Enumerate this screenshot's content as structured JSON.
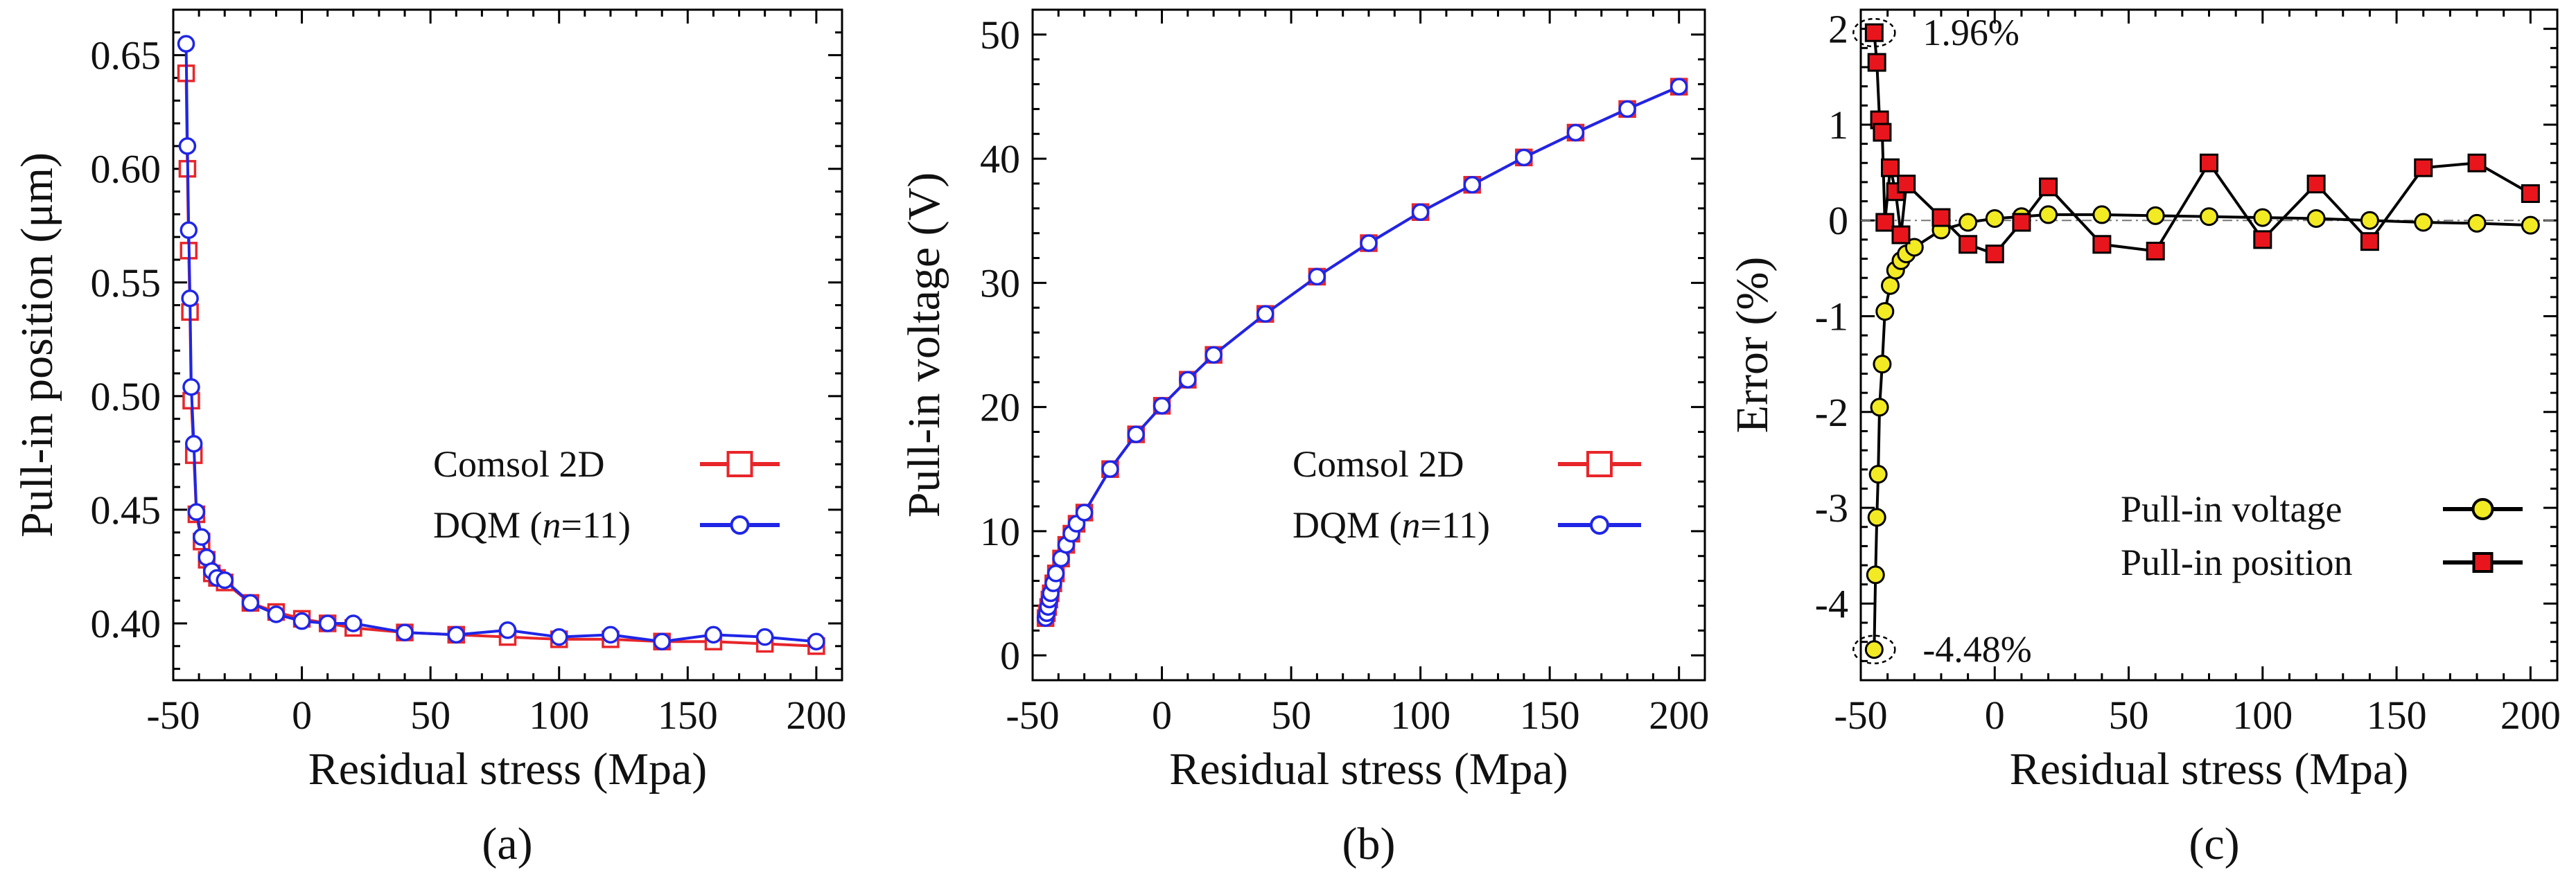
{
  "chart_data": [
    {
      "type": "line",
      "caption": "(a)",
      "xlabel": "Residual stress (Mpa)",
      "ylabel": "Pull-in position (μm)",
      "xlim": [
        -50,
        210
      ],
      "ylim": [
        0.375,
        0.67
      ],
      "xticks": [
        -50,
        0,
        50,
        100,
        150,
        200
      ],
      "xtick_labels": [
        "-50",
        "0",
        "50",
        "100",
        "150",
        "200"
      ],
      "yticks": [
        0.4,
        0.45,
        0.5,
        0.55,
        0.6,
        0.65
      ],
      "ytick_labels": [
        "0.40",
        "0.45",
        "0.50",
        "0.55",
        "0.60",
        "0.65"
      ],
      "legend_position": "center-right",
      "series": [
        {
          "name": "Comsol 2D",
          "color": "#e8262a",
          "marker": "square",
          "x": [
            -45,
            -44.5,
            -44,
            -43.5,
            -43,
            -42,
            -41,
            -39,
            -37,
            -35,
            -33,
            -30,
            -20,
            -10,
            0,
            10,
            20,
            40,
            60,
            80,
            100,
            120,
            140,
            160,
            180,
            200
          ],
          "y": [
            0.642,
            0.6,
            0.564,
            0.537,
            0.498,
            0.474,
            0.448,
            0.436,
            0.428,
            0.422,
            0.42,
            0.418,
            0.409,
            0.405,
            0.402,
            0.4,
            0.398,
            0.396,
            0.395,
            0.394,
            0.393,
            0.393,
            0.392,
            0.392,
            0.391,
            0.39
          ]
        },
        {
          "name": "DQM (n=11)",
          "name_main": "DQM (",
          "name_italic": "n",
          "name_tail": "=11)",
          "color": "#1f26e6",
          "marker": "circle",
          "x": [
            -45,
            -44.5,
            -44,
            -43.5,
            -43,
            -42,
            -41,
            -39,
            -37,
            -35,
            -33,
            -30,
            -20,
            -10,
            0,
            10,
            20,
            40,
            60,
            80,
            100,
            120,
            140,
            160,
            180,
            200
          ],
          "y": [
            0.655,
            0.61,
            0.573,
            0.543,
            0.504,
            0.479,
            0.449,
            0.438,
            0.429,
            0.423,
            0.42,
            0.419,
            0.409,
            0.404,
            0.401,
            0.4,
            0.4,
            0.396,
            0.395,
            0.397,
            0.394,
            0.395,
            0.392,
            0.395,
            0.394,
            0.392
          ]
        }
      ]
    },
    {
      "type": "line",
      "caption": "(b)",
      "xlabel": "Residual stress (Mpa)",
      "ylabel": "Pull-in voltage (V)",
      "xlim": [
        -50,
        210
      ],
      "ylim": [
        -2,
        52
      ],
      "xticks": [
        -50,
        0,
        50,
        100,
        150,
        200
      ],
      "xtick_labels": [
        "-50",
        "0",
        "50",
        "100",
        "150",
        "200"
      ],
      "yticks": [
        0,
        10,
        20,
        30,
        40,
        50
      ],
      "ytick_labels": [
        "0",
        "10",
        "20",
        "30",
        "40",
        "50"
      ],
      "legend_position": "center-right",
      "series": [
        {
          "name": "Comsol 2D",
          "color": "#e8262a",
          "marker": "square",
          "x": [
            -45,
            -44.5,
            -44,
            -43.5,
            -43,
            -42,
            -41,
            -39,
            -37,
            -35,
            -33,
            -30,
            -20,
            -10,
            0,
            10,
            20,
            40,
            60,
            80,
            100,
            120,
            140,
            160,
            180,
            200
          ],
          "y": [
            3.0,
            3.4,
            3.9,
            4.5,
            5.0,
            5.8,
            6.6,
            7.8,
            8.9,
            9.8,
            10.6,
            11.5,
            15.0,
            17.8,
            20.1,
            22.2,
            24.2,
            27.5,
            30.5,
            33.2,
            35.7,
            37.9,
            40.1,
            42.1,
            44.0,
            45.8
          ]
        },
        {
          "name": "DQM (n=11)",
          "name_main": "DQM (",
          "name_italic": "n",
          "name_tail": "=11)",
          "color": "#1f26e6",
          "marker": "circle",
          "x": [
            -45,
            -44.5,
            -44,
            -43.5,
            -43,
            -42,
            -41,
            -39,
            -37,
            -35,
            -33,
            -30,
            -20,
            -10,
            0,
            10,
            20,
            40,
            60,
            80,
            100,
            120,
            140,
            160,
            180,
            200
          ],
          "y": [
            3.0,
            3.4,
            3.9,
            4.5,
            5.0,
            5.8,
            6.6,
            7.8,
            8.9,
            9.8,
            10.6,
            11.5,
            15.0,
            17.8,
            20.1,
            22.2,
            24.2,
            27.5,
            30.5,
            33.2,
            35.7,
            37.9,
            40.1,
            42.1,
            44.0,
            45.8
          ]
        }
      ]
    },
    {
      "type": "line",
      "caption": "(c)",
      "xlabel": "Residual stress (Mpa)",
      "ylabel": "Error (%)",
      "xlim": [
        -50,
        210
      ],
      "ylim": [
        -4.8,
        2.2
      ],
      "xticks": [
        -50,
        0,
        50,
        100,
        150,
        200
      ],
      "xtick_labels": [
        "-50",
        "0",
        "50",
        "100",
        "150",
        "200"
      ],
      "yticks": [
        -4,
        -3,
        -2,
        -1,
        0,
        1,
        2
      ],
      "ytick_labels": [
        "-4",
        "-3",
        "-2",
        "-1",
        "0",
        "1",
        "2"
      ],
      "zero_line": true,
      "legend_position": "bottom-right",
      "annotations": [
        {
          "text": "1.96%",
          "x": -45,
          "y": 1.96
        },
        {
          "text": "-4.48%",
          "x": -45,
          "y": -4.48
        }
      ],
      "series": [
        {
          "name": "Pull-in voltage",
          "color": "#f2ea22",
          "line_color": "#000000",
          "marker": "circle",
          "x": [
            -45,
            -44.5,
            -44,
            -43.5,
            -43,
            -42,
            -41,
            -39,
            -37,
            -35,
            -33,
            -30,
            -20,
            -10,
            0,
            10,
            20,
            40,
            60,
            80,
            100,
            120,
            140,
            160,
            180,
            200
          ],
          "y": [
            -4.48,
            -3.7,
            -3.1,
            -2.65,
            -1.95,
            -1.5,
            -0.95,
            -0.68,
            -0.52,
            -0.42,
            -0.35,
            -0.28,
            -0.1,
            -0.02,
            0.02,
            0.04,
            0.06,
            0.06,
            0.05,
            0.04,
            0.03,
            0.02,
            0.0,
            -0.02,
            -0.03,
            -0.05
          ]
        },
        {
          "name": "Pull-in position",
          "color": "#e8161c",
          "line_color": "#000000",
          "marker": "square",
          "x": [
            -45,
            -44,
            -43,
            -42,
            -41,
            -39,
            -37,
            -35,
            -33,
            -20,
            -10,
            0,
            10,
            20,
            40,
            60,
            80,
            100,
            120,
            140,
            160,
            180,
            200
          ],
          "y": [
            1.96,
            1.65,
            1.05,
            0.92,
            -0.02,
            0.55,
            0.3,
            -0.15,
            0.38,
            0.03,
            -0.25,
            -0.35,
            -0.02,
            0.35,
            -0.25,
            -0.32,
            0.6,
            -0.2,
            0.38,
            -0.22,
            0.55,
            0.6,
            0.28
          ]
        }
      ]
    }
  ]
}
